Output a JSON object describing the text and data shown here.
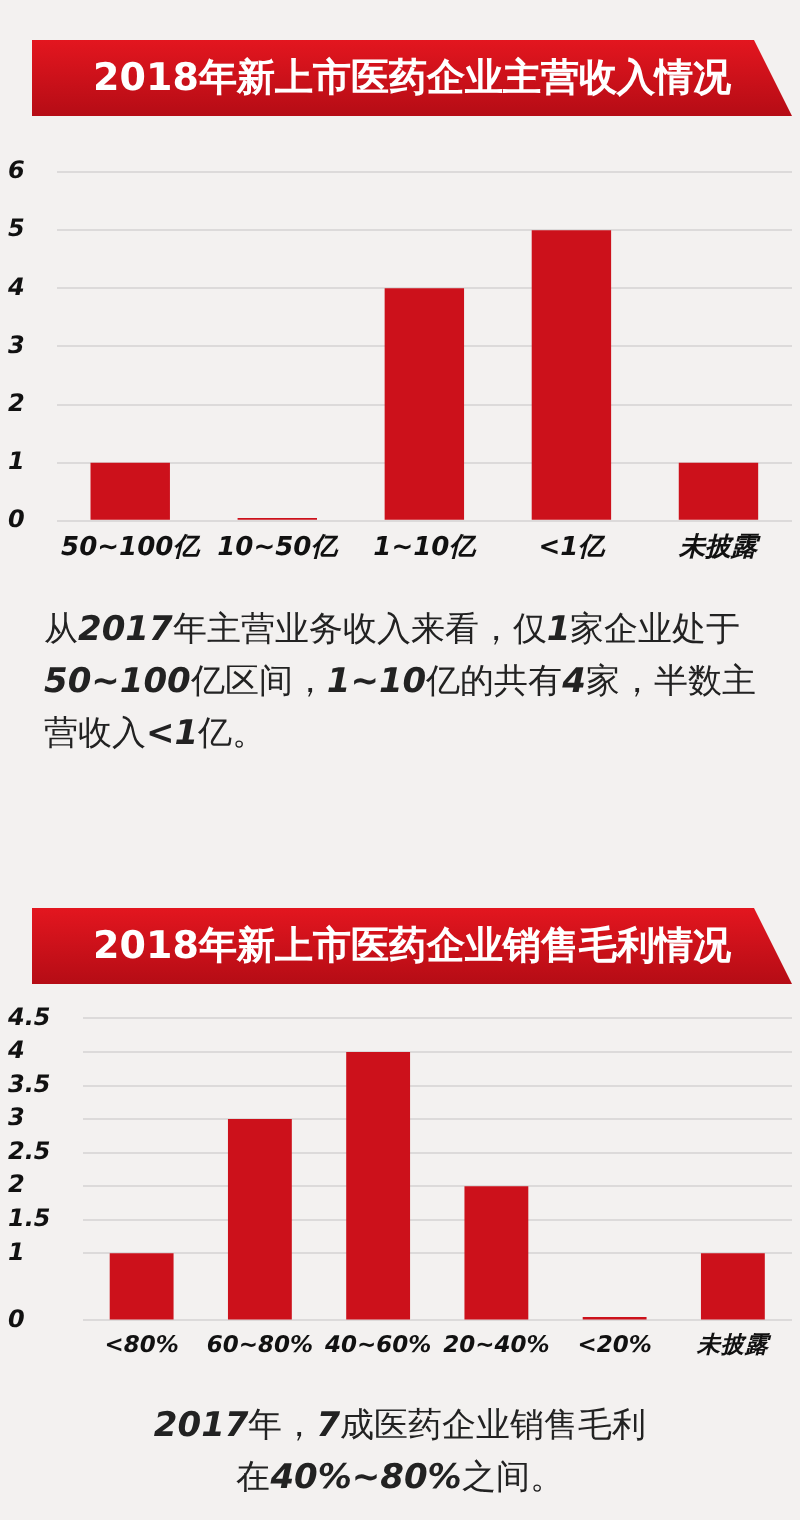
{
  "chart_data": [
    {
      "type": "bar",
      "title": "2018年新上市医药企业主营收入情况",
      "categories": [
        "50~100亿",
        "10~50亿",
        "1~10亿",
        "<1亿",
        "未披露"
      ],
      "values": [
        1,
        0.05,
        4,
        5,
        1
      ],
      "color": "#cc111b",
      "ylim": [
        0,
        6
      ],
      "yticks": [
        0,
        1,
        2,
        3,
        4,
        5,
        6
      ],
      "grid": "y",
      "annotations": [
        "从2017年主营业务收入来看，仅1家企业处于50~100亿区间，1~10亿的共有4家，半数主营收入<1亿。"
      ]
    },
    {
      "type": "bar",
      "title": "2018年新上市医药企业销售毛利情况",
      "categories": [
        "<80%",
        "60~80%",
        "40~60%",
        "20~40%",
        "<20%",
        "未披露"
      ],
      "values": [
        1,
        3,
        4,
        2,
        0.05,
        1
      ],
      "color": "#cc111b",
      "ylim": [
        0,
        4.5
      ],
      "yticks": [
        0,
        1,
        1.5,
        2,
        2.5,
        3,
        3.5,
        4,
        4.5
      ],
      "grid": "y",
      "annotations": [
        "2017年，7成医药企业销售毛利在40%~80%之间。"
      ]
    }
  ]
}
